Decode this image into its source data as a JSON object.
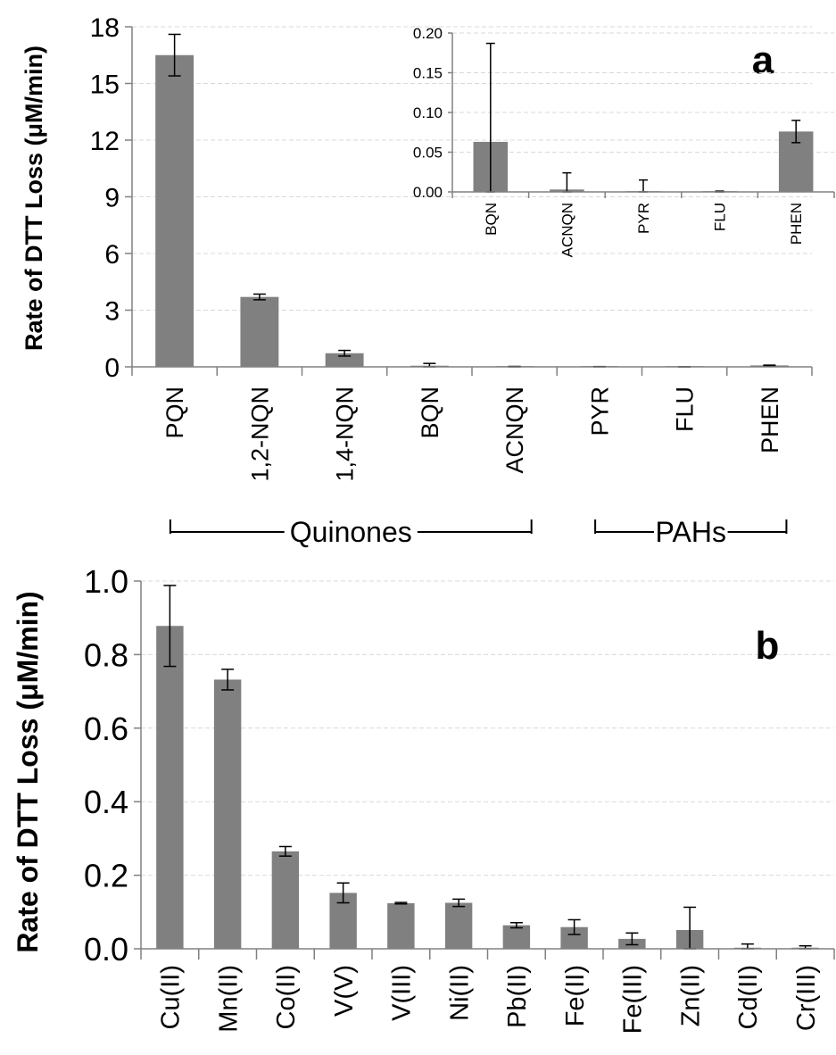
{
  "chart_data": [
    {
      "panel_label": "a",
      "type": "bar",
      "ylabel": "Rate of DTT Loss (μM/min)",
      "ylim": [
        0,
        18
      ],
      "yticks": [
        "0",
        "3",
        "6",
        "9",
        "12",
        "15",
        "18"
      ],
      "grid": true,
      "categories": [
        "PQN",
        "1,2-NQN",
        "1,4-NQN",
        "BQN",
        "ACNQN",
        "PYR",
        "FLU",
        "PHEN"
      ],
      "values": [
        16.5,
        3.7,
        0.72,
        0.06,
        0.003,
        0.0,
        0.0,
        0.076
      ],
      "errors": [
        1.1,
        0.15,
        0.15,
        0.12,
        0.02,
        0.015,
        0.001,
        0.014
      ],
      "groups": [
        {
          "label": "Quinones",
          "from": 0,
          "to": 4
        },
        {
          "label": "PAHs",
          "from": 5,
          "to": 7
        }
      ],
      "inset": {
        "type": "bar",
        "ylim": [
          0,
          0.2
        ],
        "yticks": [
          "0.00",
          "0.05",
          "0.10",
          "0.15",
          "0.20"
        ],
        "grid": true,
        "categories": [
          "BQN",
          "ACNQN",
          "PYR",
          "FLU",
          "PHEN"
        ],
        "values": [
          0.063,
          0.003,
          0.0,
          0.0,
          0.076
        ],
        "errors": [
          0.124,
          0.021,
          0.015,
          0.001,
          0.014
        ]
      }
    },
    {
      "panel_label": "b",
      "type": "bar",
      "ylabel": "Rate of DTT Loss (μM/min)",
      "ylim": [
        0,
        1.0
      ],
      "yticks": [
        "0.0",
        "0.2",
        "0.4",
        "0.6",
        "0.8",
        "1.0"
      ],
      "grid": true,
      "categories": [
        "Cu(II)",
        "Mn(II)",
        "Co(II)",
        "V(V)",
        "V(III)",
        "Ni(II)",
        "Pb(II)",
        "Fe(II)",
        "Fe(III)",
        "Zn(II)",
        "Cd(II)",
        "Cr(III)"
      ],
      "values": [
        0.878,
        0.732,
        0.265,
        0.152,
        0.124,
        0.125,
        0.064,
        0.059,
        0.027,
        0.051,
        0.003,
        0.003
      ],
      "errors": [
        0.11,
        0.028,
        0.013,
        0.027,
        0.002,
        0.01,
        0.007,
        0.02,
        0.016,
        0.062,
        0.01,
        0.005
      ]
    }
  ],
  "colors": {
    "bar": "#808080",
    "axis": "#808080",
    "grid": "#d9d9d9",
    "text": "#000000"
  }
}
